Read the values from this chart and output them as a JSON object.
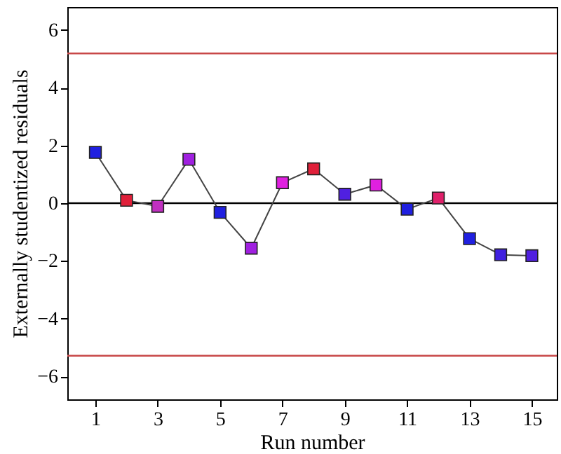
{
  "chart_data": {
    "type": "line",
    "xlabel": "Run number",
    "ylabel": "Externally studentized residuals",
    "x": [
      1,
      2,
      3,
      4,
      5,
      6,
      7,
      8,
      9,
      10,
      11,
      12,
      13,
      14,
      15
    ],
    "series": [
      {
        "color": "#444444",
        "colors": [
          "#2020e0",
          "#e0203a",
          "#c030c0",
          "#a020e0",
          "#2020e0",
          "#a020e0",
          "#e020e0",
          "#e0203a",
          "#5020e0",
          "#e020e0",
          "#2020e0",
          "#e0206a",
          "#2020e0",
          "#4020e0",
          "#5020e0"
        ],
        "values": [
          1.76,
          0.1,
          -0.11,
          1.52,
          -0.32,
          -1.56,
          0.71,
          1.19,
          0.31,
          0.63,
          -0.21,
          0.18,
          -1.23,
          -1.79,
          -1.82
        ]
      }
    ],
    "marker": "square",
    "line_style": "solid",
    "grid": false,
    "xlim": [
      0.1,
      15.8
    ],
    "xticks": [
      1,
      3,
      5,
      7,
      9,
      11,
      13,
      15
    ],
    "ylim": [
      -6.8,
      6.8
    ],
    "yticks": [
      -6,
      -4,
      -2,
      0,
      2,
      4,
      6
    ],
    "ref_lines": [
      {
        "axis": "y",
        "value": 5.19,
        "color": "#c84848"
      },
      {
        "axis": "y",
        "value": 0,
        "color": "#000000"
      },
      {
        "axis": "y",
        "value": -5.29,
        "color": "#c84848"
      }
    ]
  }
}
